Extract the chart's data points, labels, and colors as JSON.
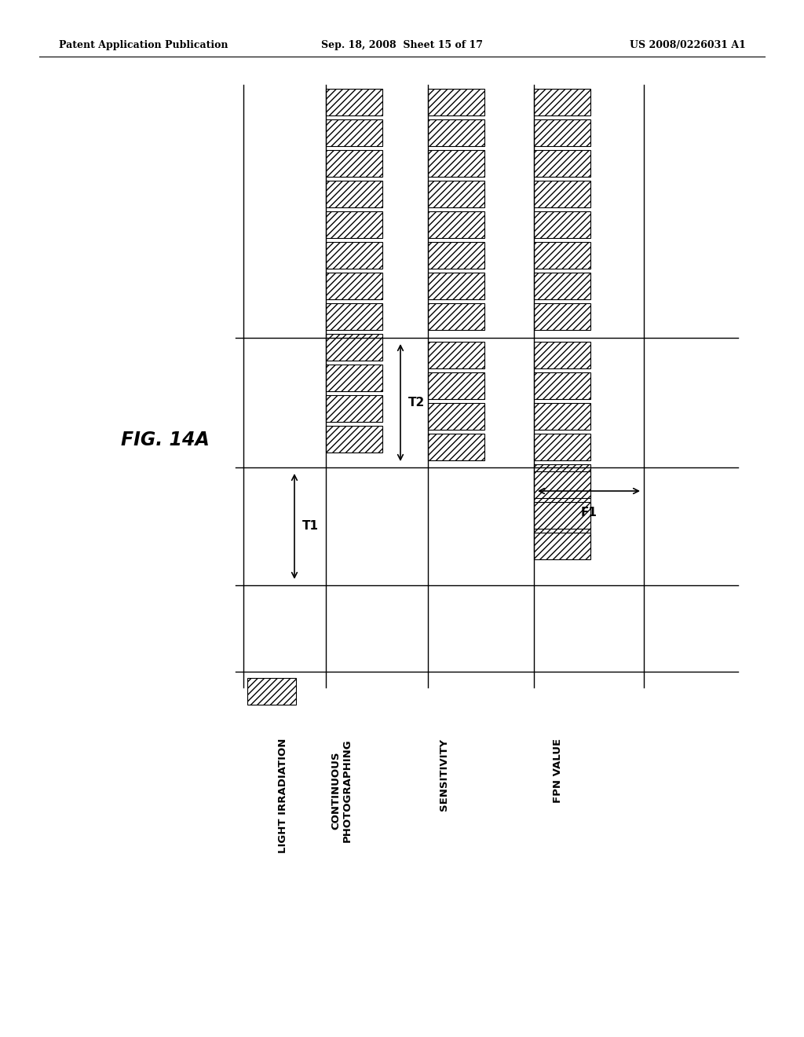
{
  "title_left": "Patent Application Publication",
  "title_center": "Sep. 18, 2008  Sheet 15 of 17",
  "title_right": "US 2008/0226031 A1",
  "fig_label": "FIG. 14A",
  "header_fontsize": 9,
  "fig_label_fontsize": 17,
  "bg_color": "#ffffff",
  "channel_labels": [
    "LIGHT IRRADIATION",
    "CONTINUOUS\nPHOTOGRAPHING",
    "SENSITIVITY",
    "FPN VALUE"
  ],
  "annotation_T1": "T1",
  "annotation_T2": "T2",
  "annotation_F1": "F1"
}
